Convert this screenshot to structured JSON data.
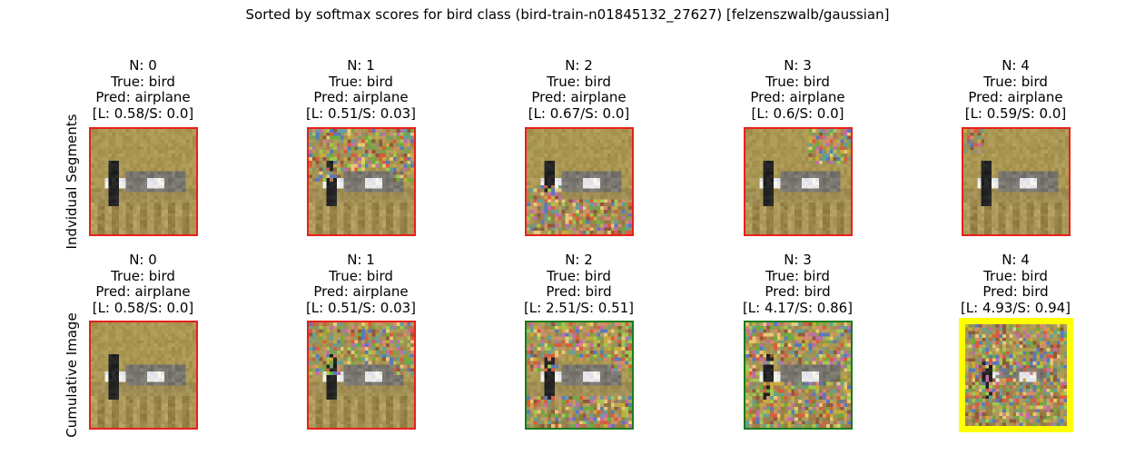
{
  "chart_data": {
    "type": "image-grid",
    "title": "Sorted by softmax scores for bird class (bird-train-n01845132_27627) [felzenszwalb/gaussian]",
    "row_labels": [
      "Indvidual Segments",
      "Cumulative Image"
    ],
    "rows": [
      {
        "name": "Indvidual Segments",
        "cells": [
          {
            "n": "N: 0",
            "true": "True: bird",
            "pred": "Pred: airplane",
            "scores": "[L: 0.58/S: 0.0]",
            "logit": 0.58,
            "softmax": 0.0,
            "border": "#e8201a",
            "noise": "none"
          },
          {
            "n": "N: 1",
            "true": "True: bird",
            "pred": "Pred: airplane",
            "scores": "[L: 0.51/S: 0.03]",
            "logit": 0.51,
            "softmax": 0.03,
            "border": "#e8201a",
            "noise": "upper"
          },
          {
            "n": "N: 2",
            "true": "True: bird",
            "pred": "Pred: airplane",
            "scores": "[L: 0.67/S: 0.0]",
            "logit": 0.67,
            "softmax": 0.0,
            "border": "#e8201a",
            "noise": "lower"
          },
          {
            "n": "N: 3",
            "true": "True: bird",
            "pred": "Pred: airplane",
            "scores": "[L: 0.6/S: 0.0]",
            "logit": 0.6,
            "softmax": 0.0,
            "border": "#e8201a",
            "noise": "topright"
          },
          {
            "n": "N: 4",
            "true": "True: bird",
            "pred": "Pred: airplane",
            "scores": "[L: 0.59/S: 0.0]",
            "logit": 0.59,
            "softmax": 0.0,
            "border": "#e8201a",
            "noise": "topleft"
          }
        ]
      },
      {
        "name": "Cumulative Image",
        "cells": [
          {
            "n": "N: 0",
            "true": "True: bird",
            "pred": "Pred: airplane",
            "scores": "[L: 0.58/S: 0.0]",
            "logit": 0.58,
            "softmax": 0.0,
            "border": "#e8201a",
            "noise": "none"
          },
          {
            "n": "N: 1",
            "true": "True: bird",
            "pred": "Pred: airplane",
            "scores": "[L: 0.51/S: 0.03]",
            "logit": 0.51,
            "softmax": 0.03,
            "border": "#e8201a",
            "noise": "upper"
          },
          {
            "n": "N: 2",
            "true": "True: bird",
            "pred": "Pred: bird",
            "scores": "[L: 2.51/S: 0.51]",
            "logit": 2.51,
            "softmax": 0.51,
            "border": "#1a7a1a",
            "noise": "upperlower"
          },
          {
            "n": "N: 3",
            "true": "True: bird",
            "pred": "Pred: bird",
            "scores": "[L: 4.17/S: 0.86]",
            "logit": 4.17,
            "softmax": 0.86,
            "border": "#1a7a1a",
            "noise": "most"
          },
          {
            "n": "N: 4",
            "true": "True: bird",
            "pred": "Pred: bird",
            "scores": "[L: 4.93/S: 0.94]",
            "logit": 4.93,
            "softmax": 0.94,
            "border": "#ffff00",
            "noise": "all"
          }
        ]
      }
    ]
  }
}
